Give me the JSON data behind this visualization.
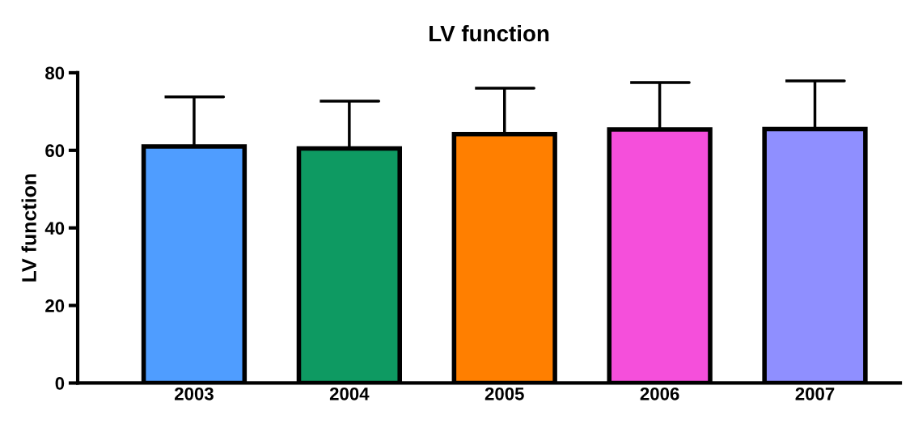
{
  "chart_data": {
    "type": "bar",
    "title": "LV function",
    "ylabel": "LV function",
    "categories": [
      "2003",
      "2004",
      "2005",
      "2006",
      "2007"
    ],
    "values": [
      61,
      60.5,
      64.2,
      65.4,
      65.5
    ],
    "errors": [
      12.8,
      12.2,
      11.8,
      12.1,
      12.4
    ],
    "colors": [
      "#4f9dff",
      "#0e9a62",
      "#ff7f00",
      "#f54fdb",
      "#8f8fff"
    ],
    "ylim": [
      0,
      80
    ],
    "yticks": [
      0,
      20,
      40,
      60,
      80
    ],
    "grid": false
  }
}
